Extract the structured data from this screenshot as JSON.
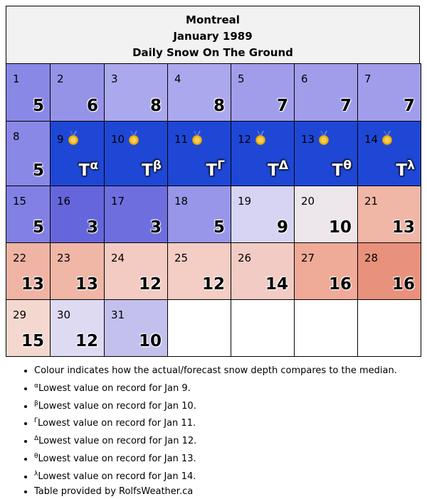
{
  "header": {
    "city": "Montreal",
    "month": "January 1989",
    "subtitle": "Daily Snow On The Ground"
  },
  "weeks": [
    [
      {
        "day": "1",
        "value": "5",
        "sup": "",
        "color": "#8a88e6"
      },
      {
        "day": "2",
        "value": "6",
        "sup": "",
        "color": "#9593e8"
      },
      {
        "day": "3",
        "value": "8",
        "sup": "",
        "color": "#aba9ee"
      },
      {
        "day": "4",
        "value": "8",
        "sup": "",
        "color": "#aba9ee"
      },
      {
        "day": "5",
        "value": "7",
        "sup": "",
        "color": "#a09eeb"
      },
      {
        "day": "6",
        "value": "7",
        "sup": "",
        "color": "#a09eeb"
      },
      {
        "day": "7",
        "value": "7",
        "sup": "",
        "color": "#a09eeb"
      }
    ],
    [
      {
        "day": "8",
        "value": "5",
        "sup": "",
        "color": "#8a88e6"
      },
      {
        "day": "9",
        "value": "T",
        "sup": "α",
        "color": "#1f47d6",
        "medal": true
      },
      {
        "day": "10",
        "value": "T",
        "sup": "β",
        "color": "#1f47d6",
        "medal": true
      },
      {
        "day": "11",
        "value": "T",
        "sup": "Γ",
        "color": "#1f47d6",
        "medal": true
      },
      {
        "day": "12",
        "value": "T",
        "sup": "Δ",
        "color": "#1f47d6",
        "medal": true
      },
      {
        "day": "13",
        "value": "T",
        "sup": "θ",
        "color": "#1f47d6",
        "medal": true
      },
      {
        "day": "14",
        "value": "T",
        "sup": "λ",
        "color": "#1f47d6",
        "medal": true
      }
    ],
    [
      {
        "day": "15",
        "value": "5",
        "sup": "",
        "color": "#8280e4"
      },
      {
        "day": "16",
        "value": "3",
        "sup": "",
        "color": "#6666dc"
      },
      {
        "day": "17",
        "value": "3",
        "sup": "",
        "color": "#6e6edf"
      },
      {
        "day": "18",
        "value": "5",
        "sup": "",
        "color": "#9896e8"
      },
      {
        "day": "19",
        "value": "9",
        "sup": "",
        "color": "#d6d4f2"
      },
      {
        "day": "20",
        "value": "10",
        "sup": "",
        "color": "#ede6ea"
      },
      {
        "day": "21",
        "value": "13",
        "sup": "",
        "color": "#f0b6a6"
      }
    ],
    [
      {
        "day": "22",
        "value": "13",
        "sup": "",
        "color": "#f0b4a4"
      },
      {
        "day": "23",
        "value": "13",
        "sup": "",
        "color": "#f0b6a6"
      },
      {
        "day": "24",
        "value": "12",
        "sup": "",
        "color": "#f4cbc2"
      },
      {
        "day": "25",
        "value": "12",
        "sup": "",
        "color": "#f4cdc4"
      },
      {
        "day": "26",
        "value": "14",
        "sup": "",
        "color": "#f2ccc4"
      },
      {
        "day": "27",
        "value": "16",
        "sup": "",
        "color": "#efaa98"
      },
      {
        "day": "28",
        "value": "16",
        "sup": "",
        "color": "#e8917c"
      }
    ],
    [
      {
        "day": "29",
        "value": "15",
        "sup": "",
        "color": "#f4d8d0"
      },
      {
        "day": "30",
        "value": "12",
        "sup": "",
        "color": "#dedaf2"
      },
      {
        "day": "31",
        "value": "10",
        "sup": "",
        "color": "#c4c0ee"
      },
      {
        "day": "",
        "value": "",
        "sup": "",
        "color": "#ffffff"
      },
      {
        "day": "",
        "value": "",
        "sup": "",
        "color": "#ffffff"
      },
      {
        "day": "",
        "value": "",
        "sup": "",
        "color": "#ffffff"
      },
      {
        "day": "",
        "value": "",
        "sup": "",
        "color": "#ffffff"
      }
    ]
  ],
  "notes": [
    {
      "sup": "",
      "text": "Colour indicates how the actual/forecast snow depth compares to the median."
    },
    {
      "sup": "α",
      "text": "Lowest value on record for Jan 9."
    },
    {
      "sup": "β",
      "text": "Lowest value on record for Jan 10."
    },
    {
      "sup": "Γ",
      "text": "Lowest value on record for Jan 11."
    },
    {
      "sup": "Δ",
      "text": "Lowest value on record for Jan 12."
    },
    {
      "sup": "θ",
      "text": "Lowest value on record for Jan 13."
    },
    {
      "sup": "λ",
      "text": "Lowest value on record for Jan 14."
    },
    {
      "sup": "",
      "text": "Table provided by RolfsWeather.ca"
    }
  ],
  "medal_icon": "gold-medal-icon"
}
